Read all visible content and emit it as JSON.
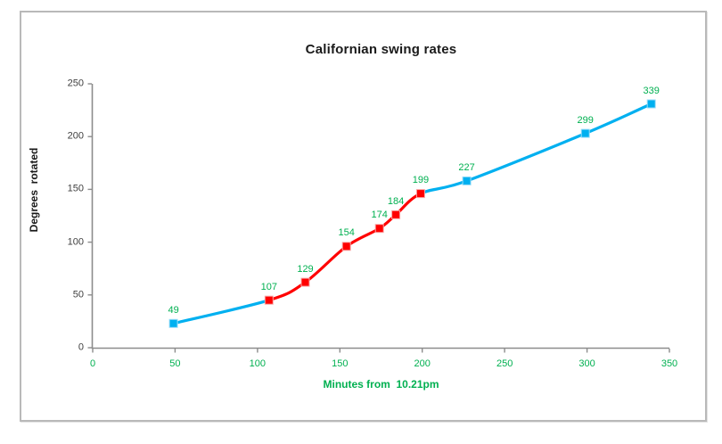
{
  "window": {
    "background": "#FFFFFF",
    "border_color": "#B9B9B9"
  },
  "chart_data": {
    "type": "line",
    "title": "Californian swing rates",
    "xlabel": "Minutes from  10.21pm",
    "ylabel": "Degrees  rotated",
    "x": [
      49,
      107,
      129,
      154,
      174,
      184,
      199,
      227,
      299,
      339
    ],
    "y": [
      23,
      45,
      62,
      96,
      113,
      126,
      146,
      158,
      203,
      231
    ],
    "point_labels": [
      "49",
      "107",
      "129",
      "154",
      "174",
      "184",
      "199",
      "227",
      "299",
      "339"
    ],
    "point_series": [
      "blue",
      "red",
      "red",
      "red",
      "red",
      "red",
      "red",
      "blue",
      "blue",
      "blue"
    ],
    "segment_series": [
      "blue",
      "red",
      "red",
      "red",
      "red",
      "red",
      "blue",
      "blue",
      "blue"
    ],
    "x_ticks": [
      0,
      50,
      100,
      150,
      200,
      250,
      300,
      350
    ],
    "y_ticks": [
      0,
      50,
      100,
      150,
      200,
      250
    ],
    "xlim": [
      0,
      350
    ],
    "ylim": [
      0,
      250
    ],
    "grid": false,
    "legend": "none",
    "smooth": true,
    "colors": {
      "blue": "#00B0F0",
      "red": "#FF0000",
      "blue_marker_edge": "#9ADCF8",
      "red_marker_edge": "#F8A8A8",
      "data_label": "#00B050",
      "x_tick_label": "#00B050",
      "y_tick_label": "#3F3F3F",
      "axis_line": "#8C8C8C",
      "title": "#1A1A1A",
      "x_axis_title": "#00B050",
      "y_axis_title": "#1A1A1A"
    }
  }
}
